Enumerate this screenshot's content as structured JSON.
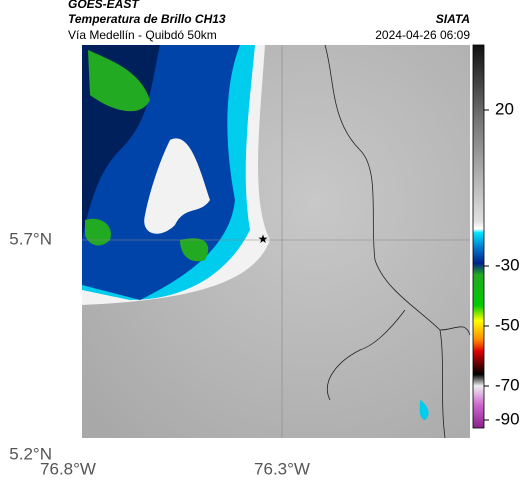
{
  "header": {
    "title": "GOES-EAST",
    "subtitle": "Temperatura de Brillo CH13",
    "location": "Vía Medellín - Quibdó 50km",
    "source": "SIATA",
    "datetime": "2024-04-26 06:09"
  },
  "map": {
    "lat_ticks": [
      "5.7°N",
      "5.2°N"
    ],
    "lon_ticks": [
      "76.8°W",
      "76.3°W"
    ]
  },
  "colorbar": {
    "ticks": [
      "20",
      "-30",
      "-50",
      "-70",
      "-90"
    ]
  }
}
